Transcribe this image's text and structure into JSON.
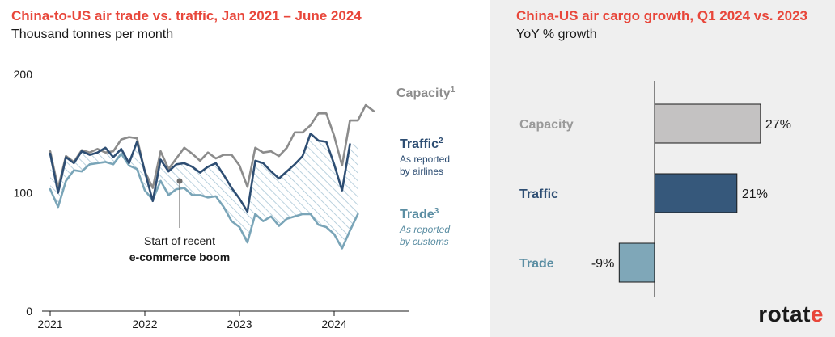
{
  "left_chart": {
    "title": "China-to-US air trade vs. traffic, Jan 2021 – June 2024",
    "subtitle": "Thousand tonnes per month",
    "annotation_line1": "Start of recent",
    "annotation_line2": "e-commerce boom",
    "labels": {
      "capacity": "Capacity",
      "capacity_sup": "1",
      "traffic": "Traffic",
      "traffic_sup": "2",
      "traffic_note1": "As reported",
      "traffic_note2": "by airlines",
      "trade": "Trade",
      "trade_sup": "3",
      "trade_note1": "As reported",
      "trade_note2": "by customs"
    },
    "colors": {
      "capacity": "#8c8c8c",
      "traffic": "#2e4e73",
      "trade": "#7aa5b8",
      "hatch": "#a9c6d6",
      "title": "#e8463a"
    }
  },
  "right_chart": {
    "title": "China-US air cargo growth, Q1 2024 vs. 2023",
    "subtitle": "YoY % growth",
    "colors": {
      "capacity": "#c4c2c2",
      "traffic": "#36587b",
      "trade": "#7fa7b8"
    }
  },
  "logo": {
    "text_main": "rotat",
    "text_accent": "e"
  },
  "chart_data": [
    {
      "type": "line",
      "title": "China-to-US air trade vs. traffic, Jan 2021 – June 2024",
      "ylabel": "Thousand tonnes per month",
      "ylim": [
        0,
        200
      ],
      "yticks": [
        0,
        100,
        200
      ],
      "xticks": [
        "2021",
        "2022",
        "2023",
        "2024"
      ],
      "x_start": "2021-01",
      "series": [
        {
          "name": "Capacity",
          "values": [
            135,
            104,
            131,
            126,
            136,
            134,
            137,
            134,
            135,
            145,
            147,
            146,
            118,
            104,
            135,
            120,
            129,
            138,
            133,
            127,
            134,
            129,
            132,
            132,
            123,
            105,
            138,
            134,
            135,
            131,
            138,
            151,
            151,
            157,
            167,
            167,
            148,
            123,
            161,
            161,
            174,
            169
          ]
        },
        {
          "name": "Traffic",
          "values": [
            133,
            100,
            130,
            125,
            135,
            132,
            134,
            138,
            130,
            137,
            125,
            143,
            118,
            93,
            128,
            118,
            124,
            125,
            122,
            117,
            122,
            125,
            115,
            104,
            95,
            84,
            127,
            125,
            118,
            112,
            118,
            124,
            131,
            150,
            144,
            143,
            124,
            102,
            141
          ]
        },
        {
          "name": "Trade",
          "values": [
            103,
            88,
            110,
            119,
            118,
            124,
            125,
            126,
            124,
            133,
            123,
            120,
            102,
            94,
            110,
            98,
            103,
            104,
            98,
            98,
            96,
            97,
            88,
            76,
            71,
            58,
            82,
            76,
            80,
            72,
            78,
            80,
            82,
            82,
            73,
            71,
            65,
            53,
            68,
            82
          ]
        }
      ]
    },
    {
      "type": "bar",
      "orientation": "horizontal",
      "title": "China-US air cargo growth, Q1 2024 vs. 2023",
      "ylabel": "YoY % growth",
      "categories": [
        "Capacity",
        "Traffic",
        "Trade"
      ],
      "values": [
        27,
        21,
        -9
      ],
      "value_labels": [
        "27%",
        "21%",
        "-9%"
      ]
    }
  ]
}
